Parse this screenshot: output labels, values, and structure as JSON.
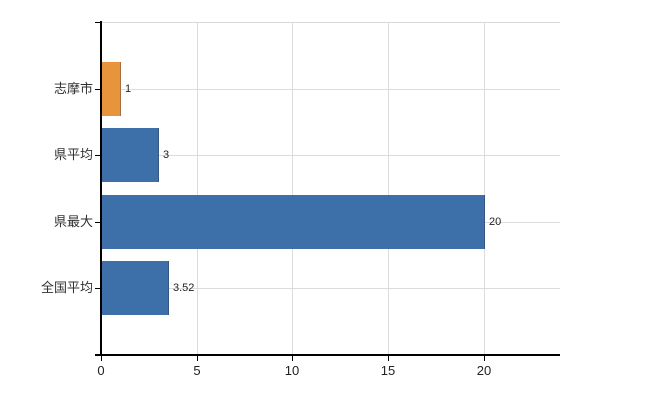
{
  "chart_data": {
    "type": "bar",
    "orientation": "horizontal",
    "title": "",
    "xlabel": "",
    "ylabel": "",
    "categories": [
      "志摩市",
      "県平均",
      "県最大",
      "全国平均"
    ],
    "values": [
      1,
      3,
      20,
      3.52
    ],
    "value_labels": [
      "1",
      "3",
      "20",
      "3.52"
    ],
    "bar_colors": [
      "#E8943C",
      "#3D6FA8",
      "#3D6FA8",
      "#3D6FA8"
    ],
    "xlim": [
      0,
      24
    ],
    "xticks": [
      0,
      5,
      10,
      15,
      20
    ],
    "xtick_labels": [
      "0",
      "5",
      "10",
      "15",
      "20"
    ],
    "grid": true,
    "legend": false
  },
  "colors": {
    "highlight_bar": "#E8943C",
    "default_bar": "#3D6FA8",
    "grid": "#DCDCDC",
    "axis": "#000000",
    "text": "#303030",
    "background": "#FFFFFF"
  }
}
